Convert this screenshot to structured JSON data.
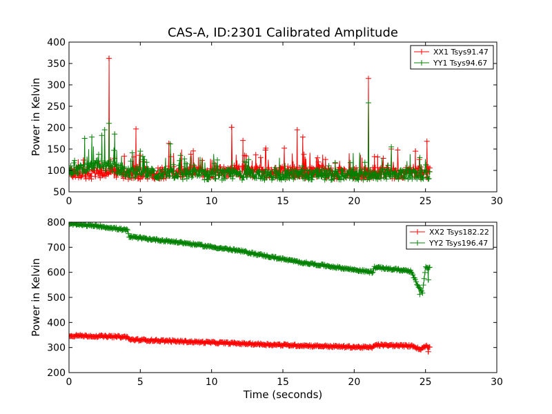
{
  "chart_data": [
    {
      "type": "line",
      "title": "CAS-A, ID:2301 Calibrated Amplitude",
      "xlabel": "",
      "ylabel": "Power in Kelvin",
      "xlim": [
        0,
        30
      ],
      "ylim": [
        50,
        400
      ],
      "xticks": [
        0,
        5,
        10,
        15,
        20,
        25,
        30
      ],
      "yticks": [
        50,
        100,
        150,
        200,
        250,
        300,
        350,
        400
      ],
      "grid": false,
      "legend_position": "top-right",
      "marker": "plus",
      "x_span": [
        0,
        25.3
      ],
      "series": [
        {
          "name": "XX1 Tsys91.47",
          "color": "#ff0000",
          "baseline": [
            [
              0,
              95
            ],
            [
              4,
              92
            ],
            [
              8,
              95
            ],
            [
              12,
              98
            ],
            [
              16,
              95
            ],
            [
              20,
              93
            ],
            [
              22,
              94
            ],
            [
              25.3,
              95
            ]
          ],
          "spread": 20,
          "spikes": [
            [
              2.8,
              362
            ],
            [
              4.7,
              197
            ],
            [
              7.0,
              163
            ],
            [
              11.4,
              201
            ],
            [
              12.2,
              170
            ],
            [
              13.8,
              152
            ],
            [
              15.1,
              152
            ],
            [
              16.0,
              195
            ],
            [
              16.4,
              178
            ],
            [
              21.0,
              315
            ],
            [
              22.6,
              150
            ],
            [
              24.3,
              145
            ],
            [
              25.1,
              168
            ]
          ]
        },
        {
          "name": "YY1 Tsys94.67",
          "color": "#008000",
          "baseline": [
            [
              0,
              100
            ],
            [
              1.5,
              110
            ],
            [
              2.8,
              112
            ],
            [
              4,
              95
            ],
            [
              6,
              92
            ],
            [
              10,
              90
            ],
            [
              15,
              90
            ],
            [
              20,
              90
            ],
            [
              25.3,
              92
            ]
          ],
          "spread": 18,
          "spikes": [
            [
              1.1,
              175
            ],
            [
              1.6,
              178
            ],
            [
              2.3,
              182
            ],
            [
              2.5,
              195
            ],
            [
              2.8,
              210
            ],
            [
              3.2,
              185
            ],
            [
              5.0,
              145
            ],
            [
              7.1,
              162
            ],
            [
              21.0,
              258
            ],
            [
              22.6,
              155
            ],
            [
              24.6,
              130
            ]
          ]
        }
      ]
    },
    {
      "type": "line",
      "title": "",
      "xlabel": "Time (seconds)",
      "ylabel": "Power in Kelvin",
      "xlim": [
        0,
        30
      ],
      "ylim": [
        200,
        800
      ],
      "xticks": [
        0,
        5,
        10,
        15,
        20,
        25,
        30
      ],
      "yticks": [
        200,
        300,
        400,
        500,
        600,
        700,
        800
      ],
      "grid": false,
      "legend_position": "top-right",
      "marker": "plus",
      "x_span": [
        0,
        25.3
      ],
      "series": [
        {
          "name": "XX2 Tsys182.22",
          "color": "#ff0000",
          "baseline": [
            [
              0,
              348
            ],
            [
              4.1,
              342
            ],
            [
              4.2,
              332
            ],
            [
              10,
              320
            ],
            [
              15,
              310
            ],
            [
              21.3,
              300
            ],
            [
              21.4,
              310
            ],
            [
              24.2,
              306
            ],
            [
              24.6,
              292
            ],
            [
              25.0,
              306
            ],
            [
              25.3,
              302
            ]
          ],
          "spread": 6,
          "spikes": [
            [
              25.2,
              283
            ]
          ]
        },
        {
          "name": "YY2 Tsys196.47",
          "color": "#008000",
          "baseline": [
            [
              0,
              793
            ],
            [
              2,
              785
            ],
            [
              4.1,
              768
            ],
            [
              4.2,
              742
            ],
            [
              8,
              718
            ],
            [
              12,
              685
            ],
            [
              16,
              642
            ],
            [
              21.3,
              600
            ],
            [
              21.4,
              620
            ],
            [
              24.0,
              605
            ],
            [
              24.5,
              540
            ],
            [
              24.8,
              520
            ],
            [
              25.0,
              620
            ],
            [
              25.3,
              620
            ]
          ],
          "spread": 6,
          "spikes": [
            [
              24.6,
              512
            ],
            [
              25.2,
              570
            ]
          ]
        }
      ]
    }
  ]
}
